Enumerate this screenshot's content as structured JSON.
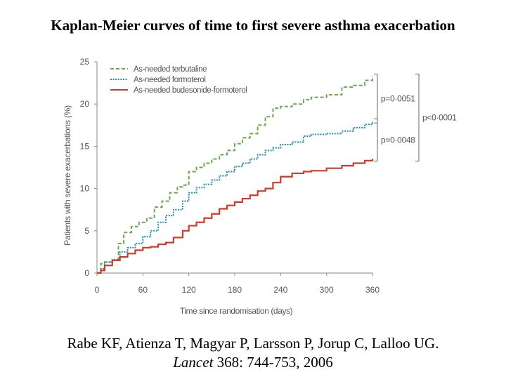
{
  "slide": {
    "title": "Kaplan-Meier curves of time to first severe asthma exacerbation",
    "citation_authors": "Rabe KF, Atienza T, Magyar P, Larsson P, Jorup C, Lalloo UG.",
    "citation_journal": "Lancet",
    "citation_details": " 368: 744-753, 2006"
  },
  "chart_data": {
    "type": "line",
    "step": true,
    "title": "Kaplan-Meier curves of time to first severe asthma exacerbation",
    "xlabel": "Time since randomisation (days)",
    "ylabel": "Patients with severe exacerbations (%)",
    "xlim": [
      0,
      360
    ],
    "ylim": [
      0,
      25
    ],
    "xticks": [
      0,
      60,
      120,
      180,
      240,
      300,
      360
    ],
    "yticks": [
      0,
      5,
      10,
      15,
      20,
      25
    ],
    "grid": false,
    "legend_position": "top-left",
    "series": [
      {
        "name": "As-needed terbutaline",
        "color": "#6aa84f",
        "dash": "dashed",
        "x": [
          0,
          5,
          10,
          20,
          28,
          35,
          45,
          55,
          65,
          75,
          85,
          95,
          105,
          112,
          120,
          130,
          140,
          150,
          160,
          170,
          180,
          190,
          200,
          210,
          220,
          230,
          240,
          255,
          270,
          280,
          300,
          320,
          335,
          350,
          360
        ],
        "y": [
          0,
          1.1,
          1.3,
          1.5,
          3.5,
          4.8,
          5.5,
          6.0,
          6.5,
          7.8,
          8.5,
          9.5,
          10.2,
          10.4,
          12.0,
          12.5,
          13.0,
          13.5,
          14.0,
          14.5,
          15.3,
          16.0,
          16.5,
          17.5,
          18.5,
          19.5,
          19.7,
          20.0,
          20.5,
          20.8,
          21.1,
          22.0,
          22.2,
          22.8,
          23.3
        ]
      },
      {
        "name": "As-needed formoterol",
        "color": "#1f8fb0",
        "dash": "dotted",
        "x": [
          0,
          5,
          10,
          20,
          30,
          40,
          50,
          60,
          70,
          80,
          90,
          100,
          112,
          120,
          130,
          140,
          150,
          160,
          170,
          180,
          190,
          200,
          210,
          220,
          230,
          240,
          255,
          270,
          280,
          300,
          320,
          335,
          350,
          360
        ],
        "y": [
          0,
          0.5,
          1.3,
          1.6,
          2.5,
          3.0,
          3.5,
          4.3,
          5.0,
          6.0,
          6.8,
          7.5,
          8.5,
          9.5,
          10.1,
          10.5,
          11.0,
          11.5,
          12.0,
          12.6,
          13.0,
          13.5,
          14.0,
          14.5,
          14.8,
          15.2,
          15.5,
          16.2,
          16.4,
          16.5,
          16.8,
          17.2,
          17.6,
          18.0
        ]
      },
      {
        "name": "As-needed budesonide-formoterol",
        "color": "#d03a2a",
        "dash": "solid",
        "x": [
          0,
          5,
          10,
          20,
          30,
          40,
          50,
          60,
          70,
          80,
          90,
          100,
          112,
          120,
          130,
          140,
          150,
          160,
          170,
          180,
          190,
          200,
          210,
          220,
          230,
          240,
          255,
          270,
          280,
          300,
          320,
          335,
          350,
          360
        ],
        "y": [
          0,
          0.3,
          0.9,
          1.5,
          1.9,
          2.3,
          2.7,
          3.0,
          3.1,
          3.4,
          3.6,
          4.2,
          5.0,
          5.6,
          6.0,
          6.5,
          7.0,
          7.6,
          8.0,
          8.4,
          8.8,
          9.2,
          9.7,
          10.0,
          10.7,
          11.4,
          11.8,
          12.0,
          12.1,
          12.4,
          12.7,
          13.0,
          13.3,
          13.5
        ]
      }
    ],
    "annotations": [
      {
        "text": "p=0·0051",
        "between": [
          "As-needed terbutaline",
          "As-needed formoterol"
        ]
      },
      {
        "text": "p=0·0048",
        "between": [
          "As-needed formoterol",
          "As-needed budesonide-formoterol"
        ]
      },
      {
        "text": "p<0·0001",
        "between": [
          "As-needed terbutaline",
          "As-needed budesonide-formoterol"
        ]
      }
    ]
  }
}
